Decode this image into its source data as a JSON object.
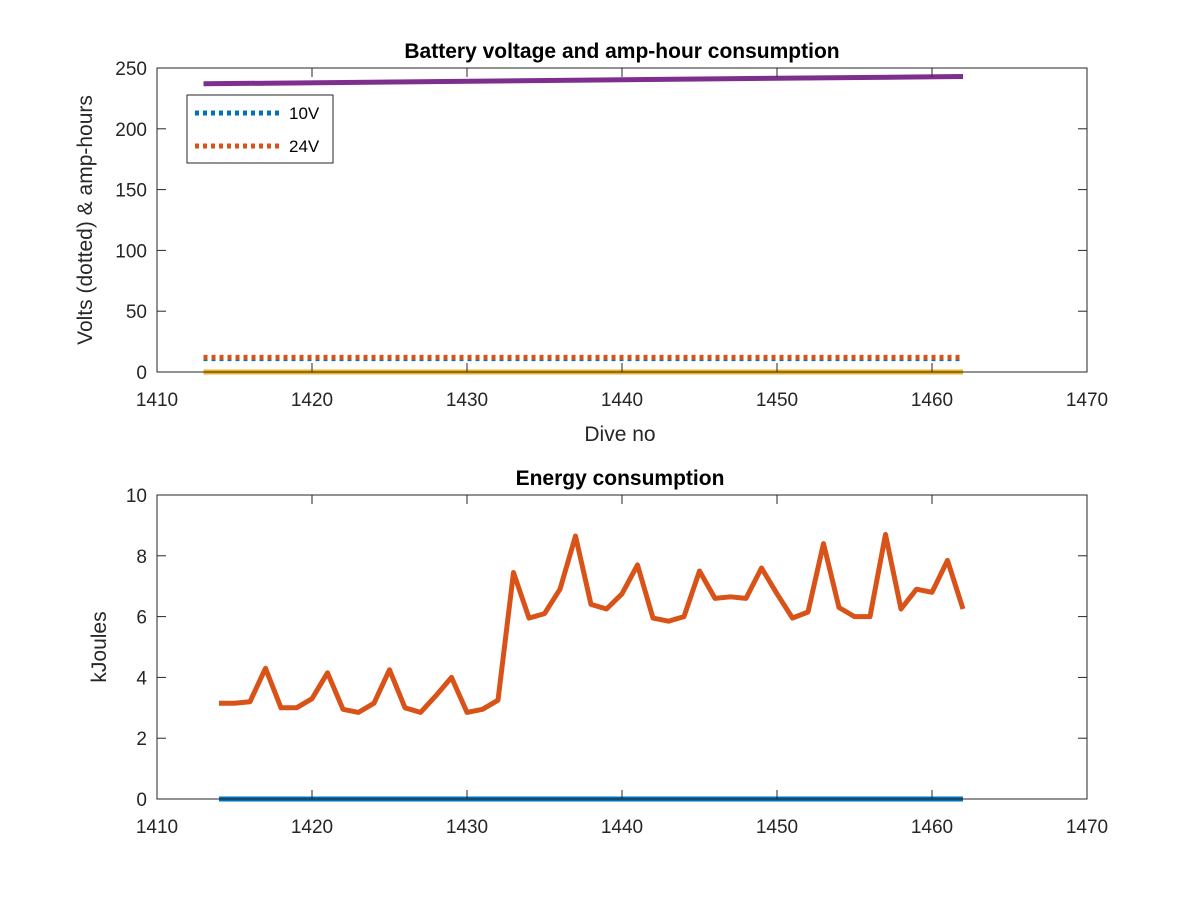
{
  "colors": {
    "blue": "#0072BD",
    "orange": "#D95319",
    "yellow": "#EDB120",
    "purple": "#7E2F8E",
    "axis": "#262626"
  },
  "chart_data": [
    {
      "type": "line",
      "title": "Battery voltage and amp-hour consumption",
      "xlabel": "Dive no",
      "ylabel": "Volts (dotted) & amp-hours",
      "xlim": [
        1410,
        1470
      ],
      "ylim": [
        0,
        250
      ],
      "xticks": [
        "1410",
        "1420",
        "1430",
        "1440",
        "1450",
        "1460",
        "1470"
      ],
      "yticks": [
        "0",
        "50",
        "100",
        "150",
        "200",
        "250"
      ],
      "grid": false,
      "legend": {
        "position": "top-left",
        "entries": [
          "10V",
          "24V"
        ]
      },
      "series": [
        {
          "name": "10V",
          "color": "blue",
          "style": "dotted",
          "x": [
            1413,
            1462
          ],
          "values": [
            11,
            11
          ]
        },
        {
          "name": "24V",
          "color": "orange",
          "style": "dotted",
          "x": [
            1413,
            1462
          ],
          "values": [
            12,
            12
          ]
        },
        {
          "color": "yellow",
          "style": "solid",
          "x": [
            1413,
            1462
          ],
          "values": [
            0,
            0
          ]
        },
        {
          "color": "purple",
          "style": "solid",
          "x": [
            1413,
            1462
          ],
          "values": [
            237,
            243
          ]
        }
      ]
    },
    {
      "type": "line",
      "title": "Energy consumption",
      "xlabel": "",
      "ylabel": "kJoules",
      "xlim": [
        1410,
        1470
      ],
      "ylim": [
        0,
        10
      ],
      "xticks": [
        "1410",
        "1420",
        "1430",
        "1440",
        "1450",
        "1460",
        "1470"
      ],
      "yticks": [
        "0",
        "2",
        "4",
        "6",
        "8",
        "10"
      ],
      "grid": false,
      "series": [
        {
          "color": "blue",
          "style": "solid",
          "x": [
            1414,
            1462
          ],
          "values": [
            0,
            0
          ]
        },
        {
          "color": "orange",
          "style": "solid",
          "x": [
            1414,
            1415,
            1416,
            1417,
            1418,
            1419,
            1420,
            1421,
            1422,
            1423,
            1424,
            1425,
            1426,
            1427,
            1428,
            1429,
            1430,
            1431,
            1432,
            1433,
            1434,
            1435,
            1436,
            1437,
            1438,
            1439,
            1440,
            1441,
            1442,
            1443,
            1444,
            1445,
            1446,
            1447,
            1448,
            1449,
            1450,
            1451,
            1452,
            1453,
            1454,
            1455,
            1456,
            1457,
            1458,
            1459,
            1460,
            1461,
            1462
          ],
          "values": [
            3.15,
            3.15,
            3.2,
            4.3,
            3.0,
            3.0,
            3.3,
            4.15,
            2.95,
            2.85,
            3.15,
            4.25,
            3.0,
            2.85,
            3.4,
            4.0,
            2.85,
            2.95,
            3.25,
            7.45,
            5.95,
            6.1,
            6.9,
            8.65,
            6.4,
            6.25,
            6.75,
            7.7,
            5.95,
            5.85,
            6.0,
            7.5,
            6.6,
            6.65,
            6.6,
            7.6,
            6.75,
            5.95,
            6.15,
            8.4,
            6.3,
            6.0,
            6.0,
            8.7,
            6.25,
            6.9,
            6.8,
            7.85,
            6.25
          ]
        }
      ]
    }
  ]
}
